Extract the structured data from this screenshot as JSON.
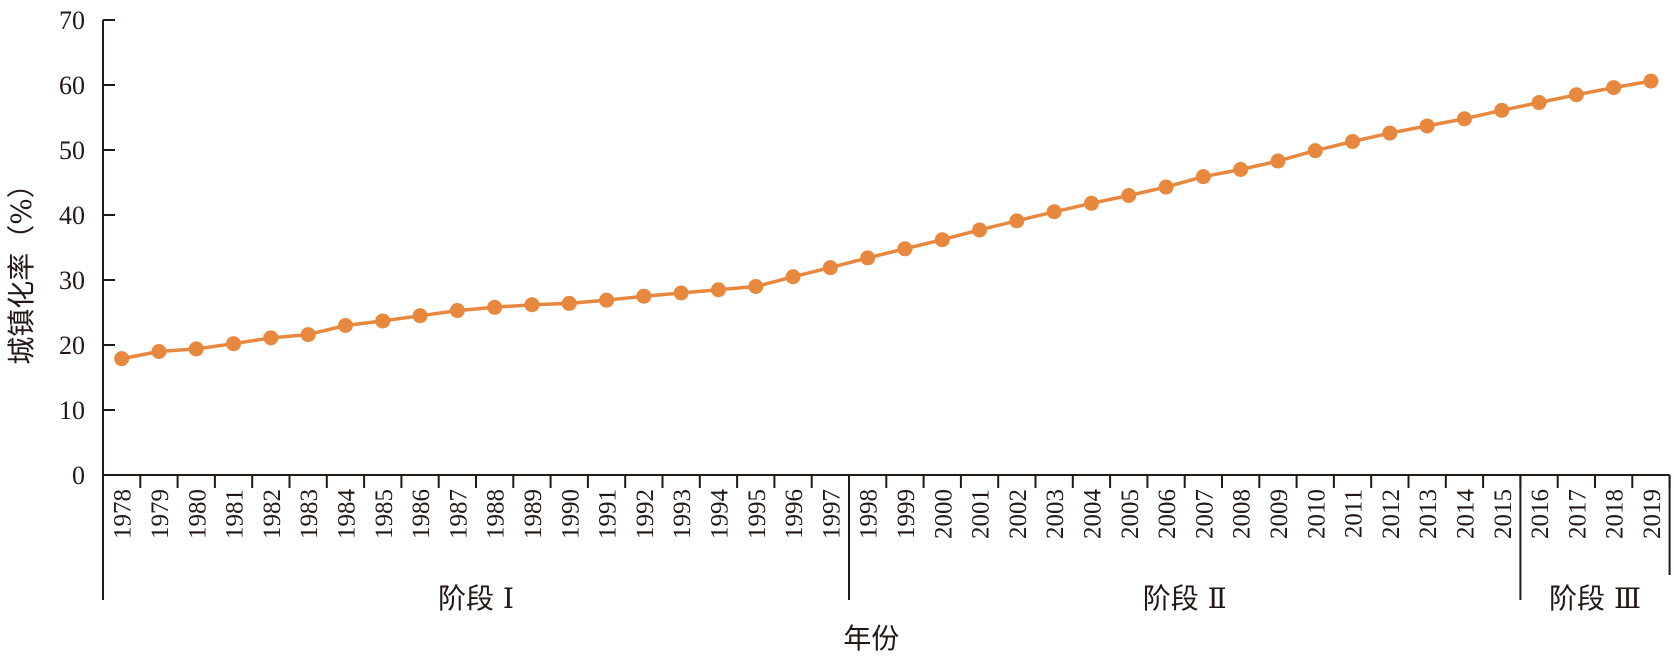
{
  "chart_data": {
    "type": "line",
    "title": "",
    "xlabel": "年份",
    "ylabel": "城镇化率（%）",
    "ylim": [
      0,
      70
    ],
    "yticks": [
      0,
      10,
      20,
      30,
      40,
      50,
      60,
      70
    ],
    "grid": false,
    "categories": [
      "1978",
      "1979",
      "1980",
      "1981",
      "1982",
      "1983",
      "1984",
      "1985",
      "1986",
      "1987",
      "1988",
      "1989",
      "1990",
      "1991",
      "1992",
      "1993",
      "1994",
      "1995",
      "1996",
      "1997",
      "1998",
      "1999",
      "2000",
      "2001",
      "2002",
      "2003",
      "2004",
      "2005",
      "2006",
      "2007",
      "2008",
      "2009",
      "2010",
      "2011",
      "2012",
      "2013",
      "2014",
      "2015",
      "2016",
      "2017",
      "2018",
      "2019"
    ],
    "series": [
      {
        "values": [
          17.9,
          19.0,
          19.4,
          20.2,
          21.1,
          21.6,
          23.0,
          23.7,
          24.5,
          25.3,
          25.8,
          26.2,
          26.4,
          26.9,
          27.5,
          28.0,
          28.5,
          29.0,
          30.5,
          31.9,
          33.4,
          34.8,
          36.2,
          37.7,
          39.1,
          40.5,
          41.8,
          43.0,
          44.3,
          45.9,
          47.0,
          48.3,
          49.9,
          51.3,
          52.6,
          53.7,
          54.8,
          56.1,
          57.3,
          58.5,
          59.6,
          60.6
        ],
        "color": "#E8883E"
      }
    ],
    "groups": [
      {
        "label": "阶段 Ⅰ",
        "from": 0,
        "to": 19
      },
      {
        "label": "阶段 Ⅱ",
        "from": 20,
        "to": 37
      },
      {
        "label": "阶段 Ⅲ",
        "from": 38,
        "to": 41
      }
    ],
    "axis_color": "#231815"
  }
}
